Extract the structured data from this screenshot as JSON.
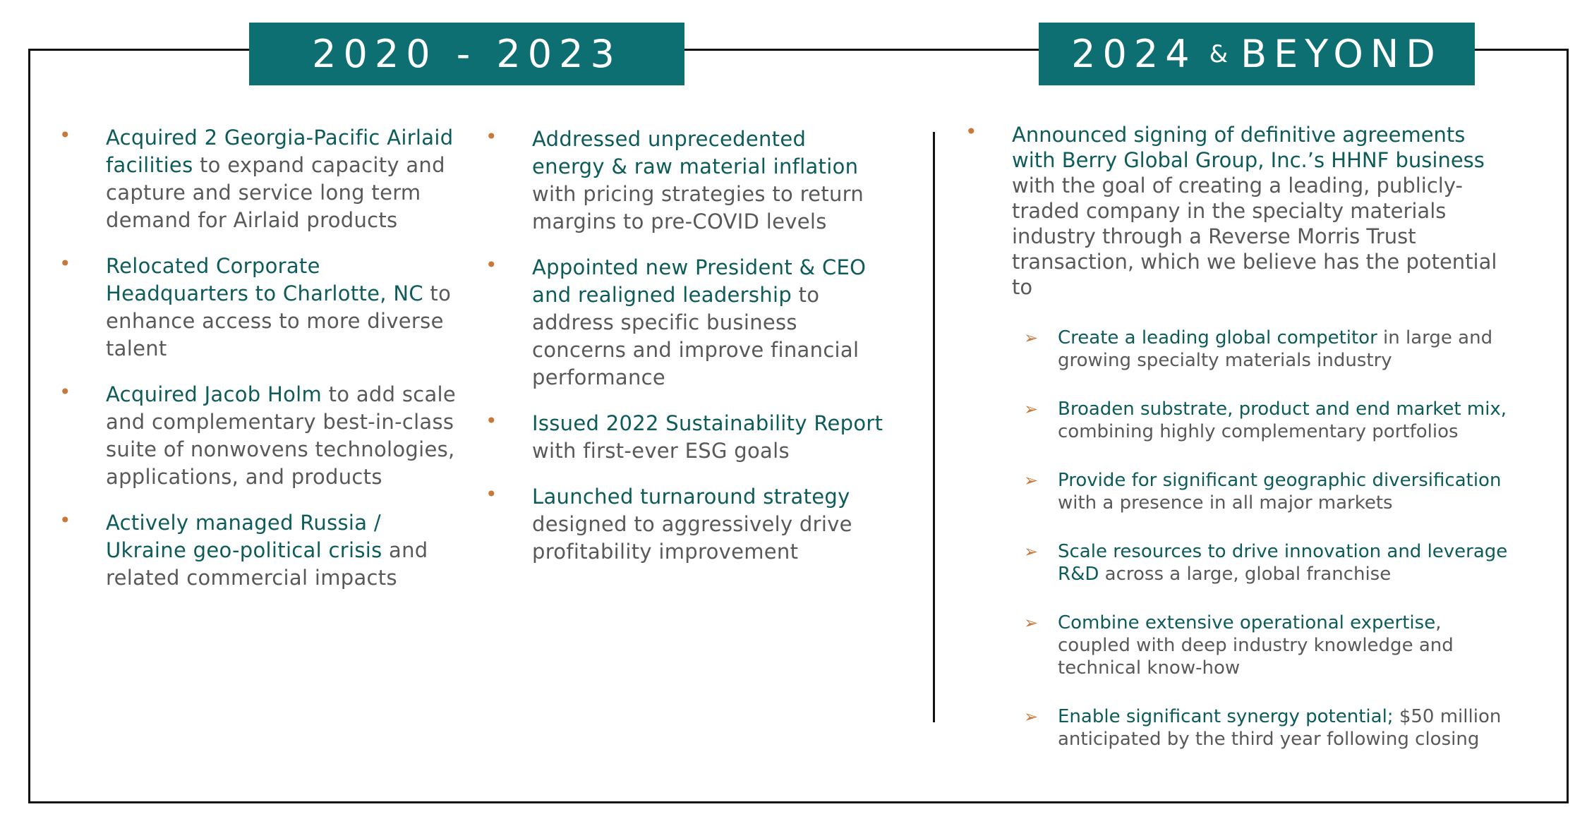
{
  "headers": {
    "left": "2020 - 2023",
    "right": [
      "2024",
      "&",
      "BEYOND"
    ]
  },
  "left_columns": [
    [
      {
        "highlight": "Acquired 2 Georgia-Pacific Airlaid facilities",
        "text": " to expand capacity and capture and service long term demand for Airlaid products"
      },
      {
        "highlight": "Relocated Corporate Headquarters to Charlotte, NC",
        "text": " to enhance access to more diverse talent"
      },
      {
        "highlight": "Acquired Jacob Holm",
        "text": " to add scale and complementary best-in-class suite of nonwovens technologies, applications, and products"
      },
      {
        "highlight": "Actively managed Russia / Ukraine geo-political crisis",
        "text": " and related commercial impacts"
      }
    ],
    [
      {
        "highlight": "Addressed unprecedented energy & raw material inflation",
        "text": " with pricing strategies to return margins to pre-COVID levels"
      },
      {
        "highlight": "Appointed new President & CEO and realigned leadership",
        "text": " to address specific business concerns and improve financial performance"
      },
      {
        "highlight": "Issued 2022 Sustainability Report",
        "text": " with first-ever ESG goals"
      },
      {
        "highlight": "Launched turnaround strategy",
        "text": " designed to aggressively drive profitability improvement"
      }
    ]
  ],
  "right": {
    "main": {
      "highlight": "Announced signing of definitive agreements with Berry Global Group, Inc.’s HHNF business",
      "text": " with the goal of creating a leading, publicly-traded company in the specialty materials industry through a Reverse Morris Trust transaction, which we believe has the potential to"
    },
    "sub_items": [
      {
        "highlight": "Create a leading global competitor",
        "text": " in large and growing specialty materials industry"
      },
      {
        "highlight": "Broaden substrate, product and end market mix,",
        "text": " combining highly complementary portfolios"
      },
      {
        "highlight": "Provide for significant geographic diversification",
        "text": " with a presence in all major markets"
      },
      {
        "highlight": "Scale resources to drive innovation and leverage R&D",
        "text": " across a large, global franchise"
      },
      {
        "highlight": "Combine extensive operational expertise",
        "text": ", coupled with deep industry knowledge and technical know-how"
      },
      {
        "highlight": "Enable significant synergy potential;",
        "text": " $50 million anticipated by the third year following closing"
      }
    ]
  }
}
